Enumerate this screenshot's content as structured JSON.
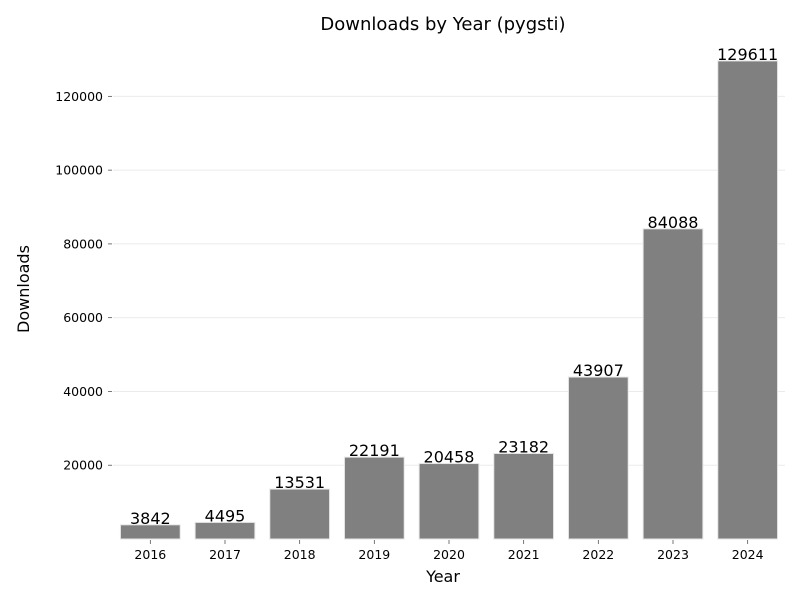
{
  "chart_data": {
    "type": "bar",
    "title": "Downloads by Year (pygsti)",
    "xlabel": "Year",
    "ylabel": "Downloads",
    "categories": [
      "2016",
      "2017",
      "2018",
      "2019",
      "2020",
      "2021",
      "2022",
      "2023",
      "2024"
    ],
    "values": [
      3842,
      4495,
      13531,
      22191,
      20458,
      23182,
      43907,
      84088,
      129611
    ],
    "data_labels": [
      "3842",
      "4495",
      "13531",
      "22191",
      "20458",
      "23182",
      "43907",
      "84088",
      "129611"
    ],
    "yticks": [
      20000,
      40000,
      60000,
      80000,
      100000,
      120000
    ],
    "ytick_labels": [
      "20000",
      "40000",
      "60000",
      "80000",
      "100000",
      "120000"
    ],
    "ylim": [
      0,
      136092
    ],
    "grid": "horizontal",
    "bar_color": "#808080",
    "grid_color": "#ebebeb"
  }
}
